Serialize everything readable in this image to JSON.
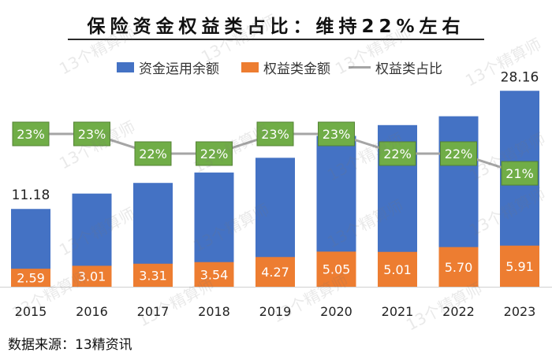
{
  "title": "保险资金权益类占比：维持22%左右",
  "source": "数据来源：13精资讯",
  "watermark": "13个精算师",
  "colors": {
    "bar_blue": "#4472C4",
    "bar_orange": "#ED7D31",
    "line_gray": "#A5A5A5",
    "label_green_bg": "#70AD47",
    "label_green_border": "#548235"
  },
  "chart_data": {
    "type": "bar",
    "categories": [
      "2015",
      "2016",
      "2017",
      "2018",
      "2019",
      "2020",
      "2021",
      "2022",
      "2023"
    ],
    "series": [
      {
        "name": "资金运用余额",
        "values": [
          11.18,
          13.39,
          14.92,
          16.41,
          18.53,
          21.68,
          23.23,
          24.5,
          28.16
        ],
        "labels": [
          "11.18",
          "",
          "",
          "",
          "",
          "",
          "",
          "",
          "28.16"
        ]
      },
      {
        "name": "权益类金额",
        "values": [
          2.59,
          3.01,
          3.31,
          3.54,
          4.27,
          5.05,
          5.01,
          5.7,
          5.91
        ],
        "labels": [
          "2.59",
          "3.01",
          "3.31",
          "3.54",
          "4.27",
          "5.05",
          "5.01",
          "5.70",
          "5.91"
        ]
      },
      {
        "name": "权益类占比",
        "type": "line",
        "values": [
          23,
          23,
          22,
          22,
          23,
          23,
          22,
          22,
          21
        ],
        "labels": [
          "23%",
          "23%",
          "22%",
          "22%",
          "23%",
          "23%",
          "22%",
          "22%",
          "21%"
        ]
      }
    ],
    "ylim": [
      0,
      30
    ],
    "ratio_ylim": [
      17,
      25
    ],
    "legend_position": "top-center",
    "grid": false
  }
}
